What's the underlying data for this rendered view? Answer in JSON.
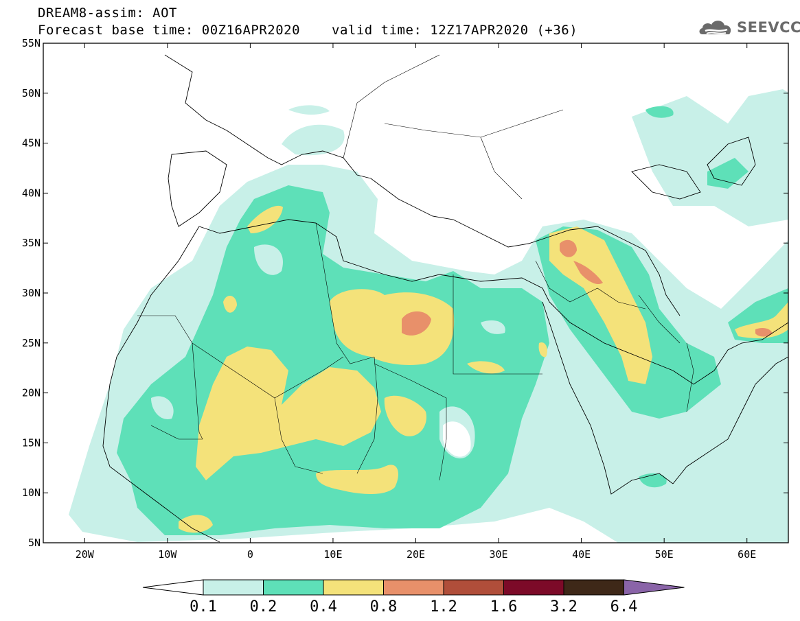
{
  "header": {
    "title": "DREAM8-assim: AOT",
    "base_time": "Forecast base time: 00Z16APR2020",
    "valid_time": "valid time: 12Z17APR2020 (+36)"
  },
  "logo": {
    "text": "SEEVCCC",
    "icon": "cloud-icon"
  },
  "map": {
    "lon_range": [
      -25,
      65
    ],
    "lat_range": [
      5,
      55
    ],
    "lon_ticks": [
      {
        "value": -20,
        "label": "20W"
      },
      {
        "value": -10,
        "label": "10W"
      },
      {
        "value": 0,
        "label": "0"
      },
      {
        "value": 10,
        "label": "10E"
      },
      {
        "value": 20,
        "label": "20E"
      },
      {
        "value": 30,
        "label": "30E"
      },
      {
        "value": 40,
        "label": "40E"
      },
      {
        "value": 50,
        "label": "50E"
      },
      {
        "value": 60,
        "label": "60E"
      }
    ],
    "lat_ticks": [
      {
        "value": 5,
        "label": "5N"
      },
      {
        "value": 10,
        "label": "10N"
      },
      {
        "value": 15,
        "label": "15N"
      },
      {
        "value": 20,
        "label": "20N"
      },
      {
        "value": 25,
        "label": "25N"
      },
      {
        "value": 30,
        "label": "30N"
      },
      {
        "value": 35,
        "label": "35N"
      },
      {
        "value": 40,
        "label": "40N"
      },
      {
        "value": 45,
        "label": "45N"
      },
      {
        "value": 50,
        "label": "50N"
      },
      {
        "value": 55,
        "label": "55N"
      }
    ]
  },
  "legend": {
    "levels": [
      "0.1",
      "0.2",
      "0.4",
      "0.8",
      "1.2",
      "1.6",
      "3.2",
      "6.4"
    ],
    "colors": [
      "#ffffff",
      "#c8f0e8",
      "#5ee0b8",
      "#f4e27a",
      "#e8906a",
      "#b04e3a",
      "#7c0a28",
      "#3e2818",
      "#8a64a8"
    ]
  }
}
